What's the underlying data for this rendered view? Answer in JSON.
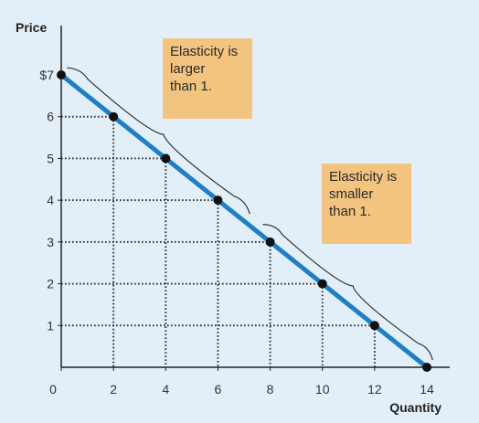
{
  "chart_data": {
    "type": "line",
    "title": "",
    "xlabel": "Quantity",
    "ylabel": "Price",
    "xlim": [
      0,
      14
    ],
    "ylim": [
      0,
      7
    ],
    "x_ticks": [
      "0",
      "2",
      "4",
      "6",
      "8",
      "10",
      "12",
      "14"
    ],
    "y_ticks": [
      "",
      "1",
      "2",
      "3",
      "4",
      "5",
      "6",
      "$7"
    ],
    "grid": false,
    "series": [
      {
        "points": [
          [
            0,
            7
          ],
          [
            2,
            6
          ],
          [
            4,
            5
          ],
          [
            6,
            4
          ],
          [
            8,
            3
          ],
          [
            10,
            2
          ],
          [
            12,
            1
          ],
          [
            14,
            0
          ]
        ],
        "color": "#1f7fc4"
      }
    ],
    "guide_points": [
      [
        2,
        6
      ],
      [
        4,
        5
      ],
      [
        6,
        4
      ],
      [
        8,
        3
      ],
      [
        10,
        2
      ],
      [
        12,
        1
      ]
    ],
    "annotations": [
      {
        "lines": [
          "Elasticity is",
          "larger",
          "than 1."
        ],
        "segment": [
          0,
          7,
          7,
          3.5
        ]
      },
      {
        "lines": [
          "Elasticity is",
          "smaller",
          "than 1."
        ],
        "segment": [
          7.5,
          3.25,
          14,
          0
        ]
      }
    ],
    "colors": {
      "background": "#e3eff8",
      "line": "#1f7fc4",
      "note_fill": "#f2c47f",
      "axis": "#222222"
    }
  }
}
